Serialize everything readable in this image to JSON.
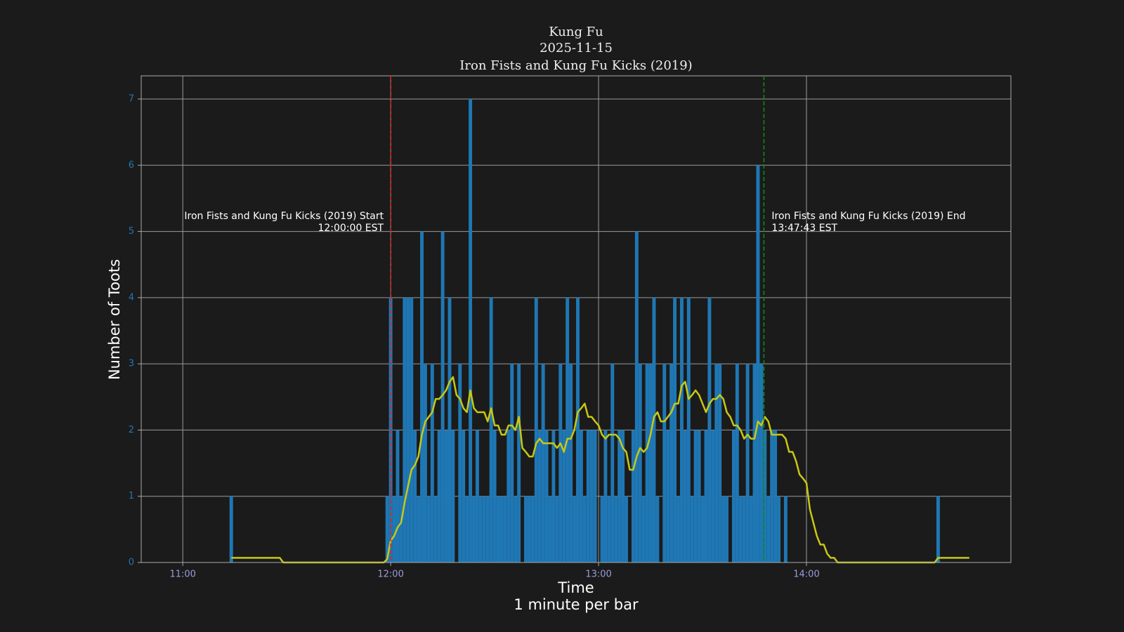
{
  "chart_data": {
    "type": "bar",
    "title": [
      "Kung Fu",
      "2025-11-15",
      "Iron Fists and Kung Fu Kicks (2019)"
    ],
    "xlabel": [
      "Time",
      "1 minute per bar"
    ],
    "ylabel": "Number of Toots",
    "xlim": [
      "10:48",
      "14:59"
    ],
    "xticks": [
      "11:00",
      "12:00",
      "13:00",
      "14:00"
    ],
    "ylim": [
      0,
      7.35
    ],
    "yticks": [
      0,
      1,
      2,
      3,
      4,
      5,
      6,
      7
    ],
    "grid": true,
    "series": [
      {
        "type": "bar",
        "color": "#1f77b4",
        "x": [
          "11:14",
          "11:59",
          "12:00",
          "12:01",
          "12:02",
          "12:03",
          "12:04",
          "12:05",
          "12:06",
          "12:07",
          "12:08",
          "12:09",
          "12:10",
          "12:11",
          "12:12",
          "12:13",
          "12:14",
          "12:15",
          "12:16",
          "12:17",
          "12:18",
          "12:20",
          "12:21",
          "12:22",
          "12:23",
          "12:24",
          "12:25",
          "12:26",
          "12:27",
          "12:28",
          "12:29",
          "12:30",
          "12:31",
          "12:32",
          "12:33",
          "12:34",
          "12:35",
          "12:36",
          "12:37",
          "12:39",
          "12:40",
          "12:41",
          "12:42",
          "12:43",
          "12:44",
          "12:45",
          "12:46",
          "12:47",
          "12:48",
          "12:49",
          "12:50",
          "12:51",
          "12:52",
          "12:53",
          "12:54",
          "12:55",
          "12:56",
          "12:57",
          "12:58",
          "12:59",
          "13:01",
          "13:02",
          "13:03",
          "13:04",
          "13:05",
          "13:06",
          "13:07",
          "13:08",
          "13:10",
          "13:11",
          "13:12",
          "13:13",
          "13:14",
          "13:15",
          "13:16",
          "13:17",
          "13:19",
          "13:20",
          "13:21",
          "13:22",
          "13:23",
          "13:24",
          "13:25",
          "13:26",
          "13:27",
          "13:28",
          "13:29",
          "13:30",
          "13:31",
          "13:32",
          "13:33",
          "13:34",
          "13:35",
          "13:36",
          "13:37",
          "13:39",
          "13:40",
          "13:41",
          "13:42",
          "13:43",
          "13:44",
          "13:45",
          "13:46",
          "13:47",
          "13:48",
          "13:49",
          "13:50",
          "13:51",
          "13:52",
          "13:54",
          "14:38"
        ],
        "values": [
          1,
          1,
          4,
          1,
          2,
          1,
          4,
          4,
          4,
          2,
          1,
          5,
          3,
          1,
          3,
          1,
          2,
          5,
          2,
          4,
          2,
          3,
          2,
          1,
          7,
          1,
          2,
          1,
          1,
          1,
          4,
          2,
          1,
          1,
          1,
          2,
          3,
          1,
          3,
          1,
          1,
          1,
          4,
          2,
          3,
          2,
          1,
          2,
          1,
          3,
          2,
          4,
          3,
          1,
          4,
          2,
          1,
          2,
          2,
          2,
          1,
          2,
          1,
          3,
          1,
          2,
          2,
          1,
          2,
          5,
          3,
          1,
          3,
          3,
          4,
          1,
          3,
          2,
          3,
          4,
          1,
          4,
          2,
          4,
          1,
          2,
          2,
          1,
          2,
          4,
          2,
          3,
          3,
          1,
          1,
          2,
          3,
          1,
          1,
          3,
          1,
          3,
          6,
          3,
          2,
          1,
          2,
          2,
          1,
          1,
          1
        ]
      },
      {
        "type": "line",
        "color": "#c8c814",
        "x": [
          "11:14",
          "11:28",
          "11:29",
          "11:58",
          "11:59",
          "12:00",
          "12:01",
          "12:02",
          "12:03",
          "12:04",
          "12:05",
          "12:06",
          "12:07",
          "12:08",
          "12:09",
          "12:10",
          "12:11",
          "12:12",
          "12:13",
          "12:14",
          "12:15",
          "12:16",
          "12:17",
          "12:18",
          "12:19",
          "12:20",
          "12:21",
          "12:22",
          "12:23",
          "12:24",
          "12:25",
          "12:26",
          "12:27",
          "12:28",
          "12:29",
          "12:30",
          "12:31",
          "12:32",
          "12:33",
          "12:34",
          "12:35",
          "12:36",
          "12:37",
          "12:38",
          "12:39",
          "12:40",
          "12:41",
          "12:42",
          "12:43",
          "12:44",
          "12:45",
          "12:46",
          "12:47",
          "12:48",
          "12:49",
          "12:50",
          "12:51",
          "12:52",
          "12:53",
          "12:54",
          "12:55",
          "12:56",
          "12:57",
          "12:58",
          "12:59",
          "13:00",
          "13:01",
          "13:02",
          "13:03",
          "13:04",
          "13:05",
          "13:06",
          "13:07",
          "13:08",
          "13:09",
          "13:10",
          "13:11",
          "13:12",
          "13:13",
          "13:14",
          "13:15",
          "13:16",
          "13:17",
          "13:18",
          "13:19",
          "13:20",
          "13:21",
          "13:22",
          "13:23",
          "13:24",
          "13:25",
          "13:26",
          "13:27",
          "13:28",
          "13:29",
          "13:30",
          "13:31",
          "13:32",
          "13:33",
          "13:34",
          "13:35",
          "13:36",
          "13:37",
          "13:38",
          "13:39",
          "13:40",
          "13:41",
          "13:42",
          "13:43",
          "13:44",
          "13:45",
          "13:46",
          "13:47",
          "13:48",
          "13:49",
          "13:50",
          "13:51",
          "13:52",
          "13:53",
          "13:54",
          "13:55",
          "13:56",
          "13:57",
          "13:58",
          "13:59",
          "14:00",
          "14:01",
          "14:02",
          "14:03",
          "14:04",
          "14:05",
          "14:06",
          "14:07",
          "14:08",
          "14:09",
          "14:37",
          "14:38",
          "14:47"
        ],
        "values": [
          0.07,
          0.07,
          0,
          0,
          0.05,
          0.33,
          0.4,
          0.53,
          0.6,
          0.9,
          1.15,
          1.4,
          1.47,
          1.6,
          1.93,
          2.13,
          2.2,
          2.27,
          2.47,
          2.47,
          2.53,
          2.6,
          2.73,
          2.8,
          2.53,
          2.47,
          2.33,
          2.27,
          2.6,
          2.33,
          2.27,
          2.27,
          2.27,
          2.13,
          2.33,
          2.07,
          2.07,
          1.93,
          1.93,
          2.07,
          2.07,
          2.0,
          2.2,
          1.73,
          1.67,
          1.6,
          1.6,
          1.8,
          1.87,
          1.8,
          1.8,
          1.8,
          1.8,
          1.73,
          1.8,
          1.67,
          1.87,
          1.87,
          2.0,
          2.27,
          2.33,
          2.4,
          2.2,
          2.2,
          2.13,
          2.07,
          1.93,
          1.87,
          1.93,
          1.93,
          1.93,
          1.87,
          1.73,
          1.67,
          1.4,
          1.4,
          1.6,
          1.73,
          1.67,
          1.73,
          1.93,
          2.2,
          2.27,
          2.13,
          2.13,
          2.2,
          2.27,
          2.4,
          2.4,
          2.67,
          2.73,
          2.47,
          2.53,
          2.6,
          2.53,
          2.4,
          2.27,
          2.4,
          2.47,
          2.47,
          2.53,
          2.47,
          2.27,
          2.2,
          2.07,
          2.07,
          2.0,
          1.87,
          1.93,
          1.87,
          1.87,
          2.13,
          2.07,
          2.2,
          2.13,
          1.93,
          1.93,
          1.93,
          1.93,
          1.87,
          1.67,
          1.67,
          1.53,
          1.33,
          1.27,
          1.2,
          0.8,
          0.6,
          0.4,
          0.27,
          0.27,
          0.13,
          0.07,
          0.07,
          0,
          0,
          0.07,
          0.07
        ]
      }
    ],
    "annotations": [
      {
        "x": "12:00:00",
        "color": "#e02020",
        "align": "right",
        "text": [
          "Iron Fists and Kung Fu Kicks (2019) Start",
          "12:00:00 EST"
        ]
      },
      {
        "x": "13:47:43",
        "color": "#109010",
        "align": "left",
        "text": [
          "Iron Fists and Kung Fu Kicks (2019) End",
          "13:47:43 EST"
        ]
      }
    ]
  }
}
